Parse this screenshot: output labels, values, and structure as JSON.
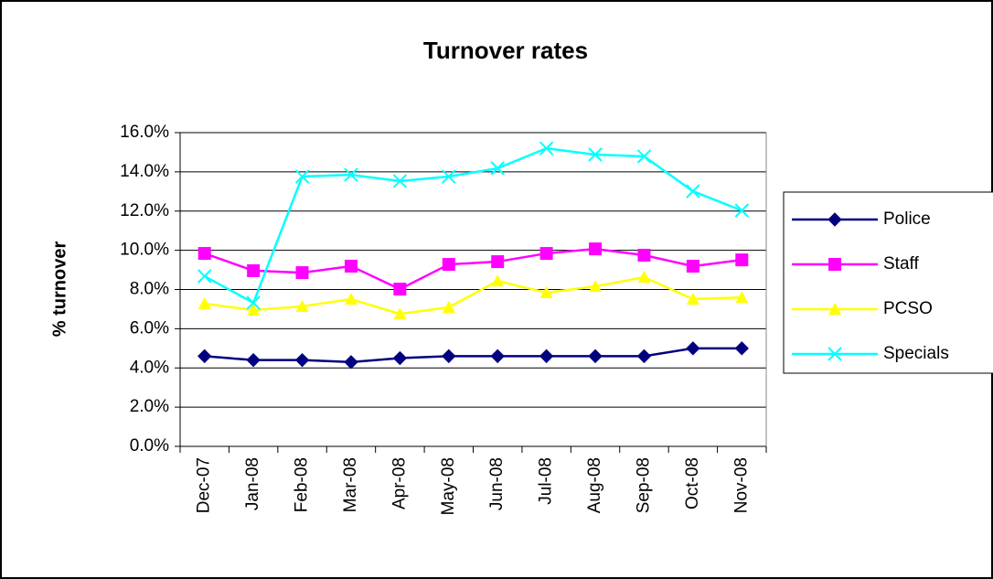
{
  "chart_data": {
    "type": "line",
    "title": "Turnover rates",
    "y_label": "% turnover",
    "categories": [
      "Dec-07",
      "Jan-08",
      "Feb-08",
      "Mar-08",
      "Apr-08",
      "May-08",
      "Jun-08",
      "Jul-08",
      "Aug-08",
      "Sep-08",
      "Oct-08",
      "Nov-08"
    ],
    "series": [
      {
        "name": "Police",
        "color": "#000080",
        "marker": "diamond",
        "values": [
          4.6,
          4.4,
          4.4,
          4.3,
          4.5,
          4.6,
          4.6,
          4.6,
          4.6,
          4.6,
          5.0,
          5.0
        ]
      },
      {
        "name": "Staff",
        "color": "#FF00FF",
        "marker": "square",
        "values": [
          9.84,
          8.96,
          8.86,
          9.19,
          8.02,
          9.28,
          9.42,
          9.84,
          10.07,
          9.75,
          9.19,
          9.51
        ]
      },
      {
        "name": "PCSO",
        "color": "#FFFF00",
        "marker": "triangle",
        "values": [
          7.28,
          6.95,
          7.14,
          7.51,
          6.76,
          7.09,
          8.44,
          7.84,
          8.16,
          8.63,
          7.51,
          7.6
        ]
      },
      {
        "name": "Specials",
        "color": "#00FFFF",
        "marker": "x",
        "values": [
          8.68,
          7.32,
          13.76,
          13.85,
          13.53,
          13.76,
          14.18,
          15.2,
          14.88,
          14.79,
          13.01,
          12.03
        ]
      }
    ],
    "ylim": [
      0,
      16
    ],
    "yticks": [
      {
        "value": 0,
        "label": "0.0%"
      },
      {
        "value": 2,
        "label": "2.0%"
      },
      {
        "value": 4,
        "label": "4.0%"
      },
      {
        "value": 6,
        "label": "6.0%"
      },
      {
        "value": 8,
        "label": "8.0%"
      },
      {
        "value": 10,
        "label": "10.0%"
      },
      {
        "value": 12,
        "label": "12.0%"
      },
      {
        "value": 14,
        "label": "14.0%"
      },
      {
        "value": 16,
        "label": "16.0%"
      }
    ],
    "grid": true,
    "legend": "right"
  }
}
